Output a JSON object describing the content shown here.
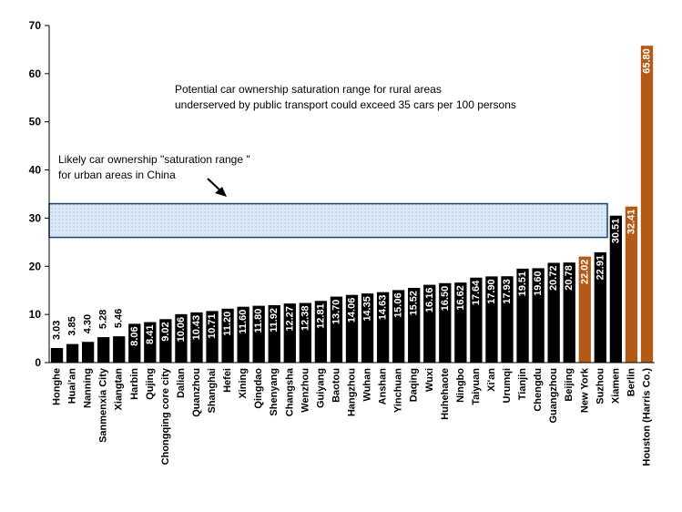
{
  "chart_data": {
    "type": "bar",
    "title": "",
    "xlabel": "",
    "ylabel": "",
    "ylim": [
      0,
      70
    ],
    "yticks": [
      0,
      10,
      20,
      30,
      40,
      50,
      60,
      70
    ],
    "grid": false,
    "categories": [
      "Honghe",
      "Huai'an",
      "Nanning",
      "Sanmenxia City",
      "Xiangtan",
      "Harbin",
      "Qujing",
      "Chongqing core city",
      "Dalian",
      "Quanzhou",
      "Shanghai",
      "Hefei",
      "Xining",
      "Qingdao",
      "Shenyang",
      "Changsha",
      "Wenzhou",
      "Guiyang",
      "Baotou",
      "Hangzhou",
      "Wuhan",
      "Anshan",
      "Yinchuan",
      "Daqing",
      "Wuxi",
      "Huhehaote",
      "Ningbo",
      "Taiyuan",
      "Xi'an",
      "Urumqi",
      "Tianjin",
      "Chengdu",
      "Guangzhou",
      "Beijing",
      "New York",
      "Suzhou",
      "Xiamen",
      "Berlin",
      "Houston (Harris Co.)"
    ],
    "values": [
      3.03,
      3.85,
      4.3,
      5.28,
      5.46,
      8.06,
      8.41,
      9.02,
      10.06,
      10.43,
      10.71,
      11.2,
      11.6,
      11.8,
      11.92,
      12.27,
      12.38,
      12.81,
      13.7,
      14.06,
      14.35,
      14.63,
      15.06,
      15.52,
      16.16,
      16.5,
      16.62,
      17.64,
      17.9,
      17.93,
      19.51,
      19.6,
      20.72,
      20.78,
      22.02,
      22.91,
      30.51,
      32.41,
      65.8
    ],
    "value_labels": [
      "3.03",
      "3.85",
      "4.30",
      "5.28",
      "5.46",
      "8.06",
      "8.41",
      "9.02",
      "10.06",
      "10.43",
      "10.71",
      "11.20",
      "11.60",
      "11.80",
      "11.92",
      "12.27",
      "12.38",
      "12.81",
      "13.70",
      "14.06",
      "14.35",
      "14.63",
      "15.06",
      "15.52",
      "16.16",
      "16.50",
      "16.62",
      "17.64",
      "17.90",
      "17.93",
      "19.51",
      "19.60",
      "20.72",
      "20.78",
      "22.02",
      "22.91",
      "30.51",
      "32.41",
      "65.80"
    ],
    "highlight_categories": [
      "New York",
      "Berlin",
      "Houston (Harris Co.)"
    ],
    "colors": {
      "bar": "#000000",
      "highlight_bar": "#b35a17",
      "band_fill": "#dbe9f6",
      "band_stroke": "#1f3f6e",
      "axis": "#000000"
    },
    "saturation_band": {
      "from": 26,
      "to": 33
    },
    "annotations": {
      "rural_line1": "Potential car ownership  saturation range for rural areas",
      "rural_line2": "underserved by public transport could exceed 35 cars per 100 persons",
      "urban_line1": "Likely car ownership \"saturation range \"",
      "urban_line2": "for urban areas in China"
    }
  }
}
